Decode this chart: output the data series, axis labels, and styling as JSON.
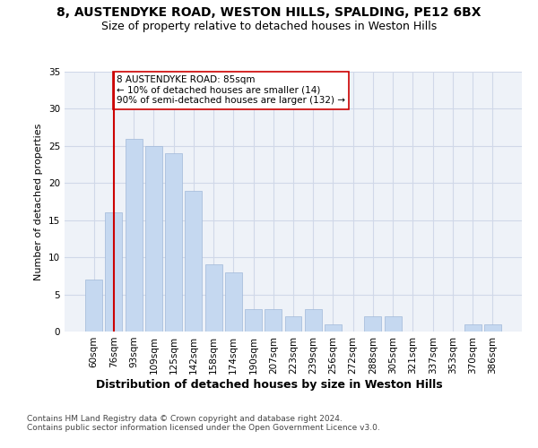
{
  "title_line1": "8, AUSTENDYKE ROAD, WESTON HILLS, SPALDING, PE12 6BX",
  "title_line2": "Size of property relative to detached houses in Weston Hills",
  "xlabel": "Distribution of detached houses by size in Weston Hills",
  "ylabel": "Number of detached properties",
  "categories": [
    "60sqm",
    "76sqm",
    "93sqm",
    "109sqm",
    "125sqm",
    "142sqm",
    "158sqm",
    "174sqm",
    "190sqm",
    "207sqm",
    "223sqm",
    "239sqm",
    "256sqm",
    "272sqm",
    "288sqm",
    "305sqm",
    "321sqm",
    "337sqm",
    "353sqm",
    "370sqm",
    "386sqm"
  ],
  "values": [
    7,
    16,
    26,
    25,
    24,
    19,
    9,
    8,
    3,
    3,
    2,
    3,
    1,
    0,
    2,
    2,
    0,
    0,
    0,
    1,
    1
  ],
  "bar_color": "#c5d8f0",
  "bar_edgecolor": "#a0b8d8",
  "grid_color": "#d0d8e8",
  "background_color": "#eef2f8",
  "vline_x": 1,
  "vline_color": "#cc0000",
  "annotation_text": "8 AUSTENDYKE ROAD: 85sqm\n← 10% of detached houses are smaller (14)\n90% of semi-detached houses are larger (132) →",
  "annotation_box_edgecolor": "#cc0000",
  "ylim": [
    0,
    35
  ],
  "yticks": [
    0,
    5,
    10,
    15,
    20,
    25,
    30,
    35
  ],
  "footer": "Contains HM Land Registry data © Crown copyright and database right 2024.\nContains public sector information licensed under the Open Government Licence v3.0.",
  "title_fontsize": 10,
  "subtitle_fontsize": 9,
  "xlabel_fontsize": 9,
  "ylabel_fontsize": 8,
  "tick_fontsize": 7.5,
  "footer_fontsize": 6.5,
  "annot_fontsize": 7.5
}
